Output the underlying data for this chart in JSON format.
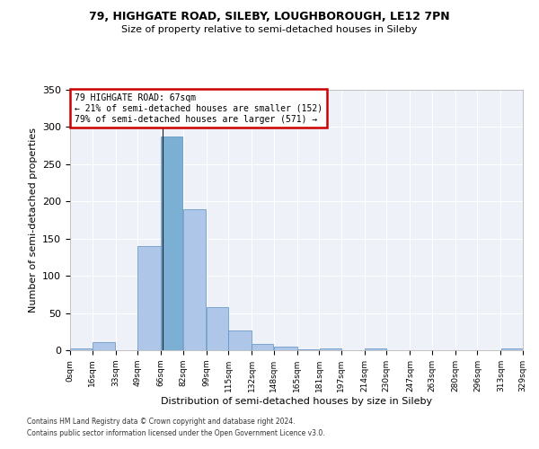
{
  "title1": "79, HIGHGATE ROAD, SILEBY, LOUGHBOROUGH, LE12 7PN",
  "title2": "Size of property relative to semi-detached houses in Sileby",
  "xlabel": "Distribution of semi-detached houses by size in Sileby",
  "ylabel": "Number of semi-detached properties",
  "footer1": "Contains HM Land Registry data © Crown copyright and database right 2024.",
  "footer2": "Contains public sector information licensed under the Open Government Licence v3.0.",
  "annotation_line1": "79 HIGHGATE ROAD: 67sqm",
  "annotation_line2": "← 21% of semi-detached houses are smaller (152)",
  "annotation_line3": "79% of semi-detached houses are larger (571) →",
  "subject_size": 67,
  "bin_edges": [
    0,
    16,
    33,
    49,
    66,
    82,
    99,
    115,
    132,
    148,
    165,
    181,
    197,
    214,
    230,
    247,
    263,
    280,
    296,
    313,
    329
  ],
  "bar_values": [
    2,
    11,
    0,
    140,
    287,
    190,
    58,
    27,
    8,
    5,
    1,
    3,
    0,
    2,
    0,
    0,
    0,
    0,
    0,
    2
  ],
  "bar_color_normal": "#aec6e8",
  "bar_color_highlight": "#7bafd4",
  "bar_edge_color": "#5a8fc0",
  "background_color": "#eef2f8",
  "grid_color": "#ffffff",
  "annotation_box_color": "#ffffff",
  "annotation_box_edge": "#cc0000",
  "ylim": [
    0,
    350
  ],
  "yticks": [
    0,
    50,
    100,
    150,
    200,
    250,
    300,
    350
  ],
  "tick_labels": [
    "0sqm",
    "16sqm",
    "33sqm",
    "49sqm",
    "66sqm",
    "82sqm",
    "99sqm",
    "115sqm",
    "132sqm",
    "148sqm",
    "165sqm",
    "181sqm",
    "197sqm",
    "214sqm",
    "230sqm",
    "247sqm",
    "263sqm",
    "280sqm",
    "296sqm",
    "313sqm",
    "329sqm"
  ]
}
